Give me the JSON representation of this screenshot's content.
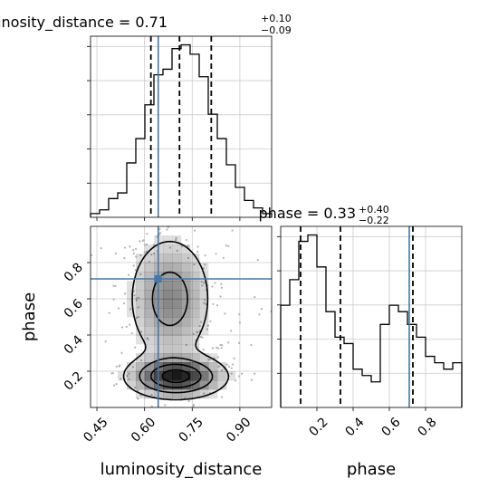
{
  "chart_data": [
    {
      "type": "histogram",
      "parameter": "luminosity_distance",
      "title": {
        "name": "luminosity_distance",
        "value": "0.71",
        "plus": "+0.10",
        "minus": "−0.09"
      },
      "xlim": [
        0.43,
        1.0
      ],
      "xticks": [
        0.45,
        0.6,
        0.75,
        0.9
      ],
      "xtick_labels": [
        "0.45",
        "0.60",
        "0.75",
        "0.90"
      ],
      "xlabel": "luminosity_distance",
      "grid": true,
      "bins": [
        0.43,
        0.4585,
        0.487,
        0.5155,
        0.544,
        0.5725,
        0.601,
        0.6295,
        0.658,
        0.6865,
        0.715,
        0.7435,
        0.772,
        0.8005,
        0.829,
        0.8575,
        0.886,
        0.9145,
        0.943,
        0.9715,
        1.0
      ],
      "counts": [
        2,
        4,
        10,
        13,
        29,
        42,
        60,
        76,
        79,
        90,
        92,
        87,
        75,
        55,
        42,
        28,
        16,
        9,
        5,
        2
      ],
      "quantiles": [
        0.62,
        0.71,
        0.81
      ],
      "truth": 0.643,
      "colors": {
        "truth": "#4477aa",
        "hist": "#000000",
        "quantile": "#000000",
        "grid": "#cccccc"
      }
    },
    {
      "type": "histogram",
      "parameter": "phase",
      "title": {
        "name": "phase",
        "value": "0.33",
        "plus": "+0.40",
        "minus": "−0.22"
      },
      "xlim": [
        0.0,
        1.0
      ],
      "xticks": [
        0.2,
        0.4,
        0.6,
        0.8
      ],
      "xtick_labels": [
        "0.2",
        "0.4",
        "0.6",
        "0.8"
      ],
      "xlabel": "phase",
      "grid": true,
      "bins": [
        0.0,
        0.05,
        0.1,
        0.15,
        0.2,
        0.25,
        0.3,
        0.35,
        0.4,
        0.45,
        0.5,
        0.55,
        0.6,
        0.65,
        0.7,
        0.75,
        0.8,
        0.85,
        0.9,
        0.95,
        1.0
      ],
      "counts": [
        16,
        20,
        26,
        27,
        22,
        15,
        11,
        10,
        6,
        5,
        4,
        13,
        16,
        15,
        13,
        11,
        8,
        7,
        6,
        7
      ],
      "quantiles": [
        0.11,
        0.33,
        0.73
      ],
      "truth": 0.71,
      "colors": {
        "truth": "#4477aa",
        "hist": "#000000",
        "quantile": "#000000",
        "grid": "#cccccc"
      }
    },
    {
      "type": "scatter_contour",
      "x_param": "luminosity_distance",
      "y_param": "phase",
      "xlim": [
        0.43,
        1.0
      ],
      "ylim": [
        0.0,
        1.0
      ],
      "xticks": [
        0.45,
        0.6,
        0.75,
        0.9
      ],
      "xtick_labels": [
        "0.45",
        "0.60",
        "0.75",
        "0.90"
      ],
      "yticks": [
        0.2,
        0.4,
        0.6,
        0.8
      ],
      "ytick_labels": [
        "0.2",
        "0.4",
        "0.6",
        "0.8"
      ],
      "xlabel": "luminosity_distance",
      "ylabel": "phase",
      "grid": true,
      "truth": [
        0.643,
        0.71
      ],
      "modes": [
        {
          "x": 0.7,
          "y": 0.17,
          "sx": 0.085,
          "sy": 0.065,
          "w": 1.0
        },
        {
          "x": 0.68,
          "y": 0.6,
          "sx": 0.075,
          "sy": 0.2,
          "w": 0.55
        }
      ],
      "contour_levels": [
        0.15,
        0.4,
        0.65,
        0.88
      ],
      "colors": {
        "truth": "#4477aa",
        "contour": "#000000",
        "density": "#000000",
        "points": "#b3b3b3",
        "grid": "#cccccc"
      }
    }
  ]
}
